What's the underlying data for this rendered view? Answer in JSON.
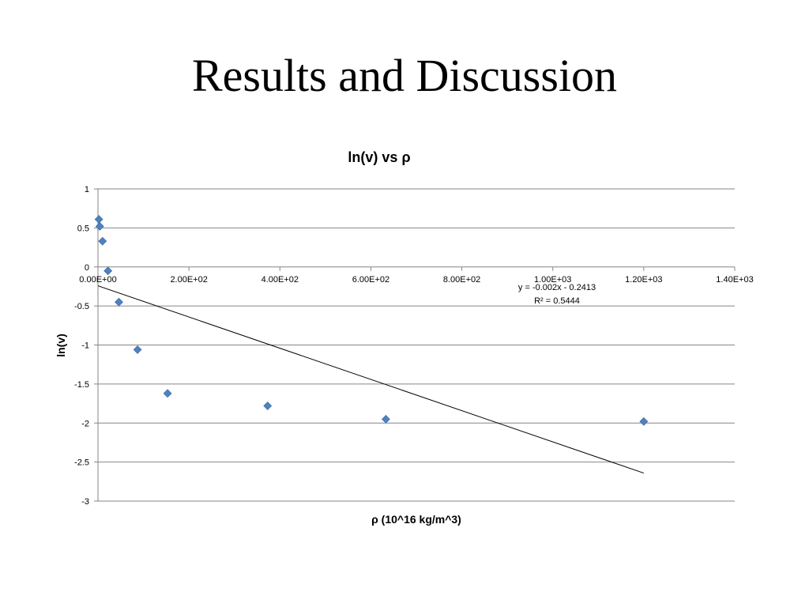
{
  "slide": {
    "title": "Results and Discussion"
  },
  "chart_data": {
    "type": "scatter",
    "title": "ln(v) vs ρ",
    "xlabel": "ρ (10^16 kg/m^3)",
    "ylabel": "ln(v)",
    "xlim": [
      0,
      1400
    ],
    "ylim": [
      -3,
      1
    ],
    "x_ticks": [
      0,
      200,
      400,
      600,
      800,
      1000,
      1200,
      1400
    ],
    "x_tick_labels": [
      "0.00E+00",
      "2.00E+02",
      "4.00E+02",
      "6.00E+02",
      "8.00E+02",
      "1.00E+03",
      "1.20E+03",
      "1.40E+03"
    ],
    "y_ticks": [
      1,
      0.5,
      0,
      -0.5,
      -1,
      -1.5,
      -2,
      -2.5,
      -3
    ],
    "y_tick_labels": [
      "1",
      "0.5",
      "0",
      "-0.5",
      "-1",
      "-1.5",
      "-2",
      "-2.5",
      "-3"
    ],
    "grid": "horizontal",
    "marker_color": "#4f81bd",
    "series": [
      {
        "x": [
          2,
          4,
          10,
          22,
          46,
          87,
          153,
          373,
          633,
          1200
        ],
        "y": [
          0.61,
          0.52,
          0.33,
          -0.05,
          -0.45,
          -1.06,
          -1.62,
          -1.78,
          -1.95,
          -1.98
        ]
      }
    ],
    "trendline": {
      "slope": -0.002,
      "intercept": -0.2413,
      "x_range": [
        0,
        1200
      ],
      "equation": "y = -0.002x - 0.2413",
      "r_squared": "R² = 0.5444"
    }
  }
}
